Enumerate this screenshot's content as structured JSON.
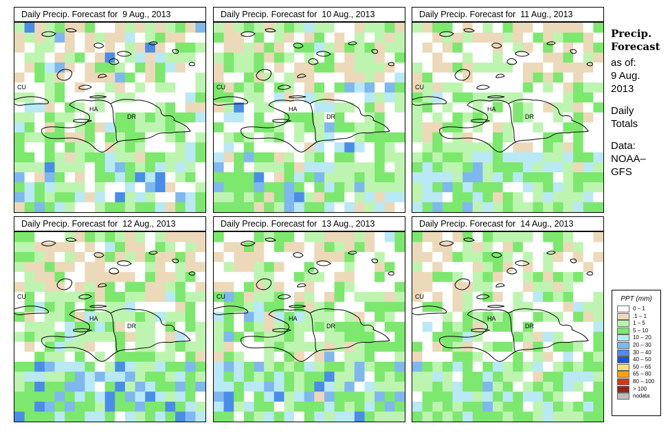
{
  "panels": [
    {
      "title": "Daily Precip. Forecast for  9 Aug., 2013",
      "labels": {
        "cu": "CU",
        "ha": "HA",
        "dr": "DR"
      }
    },
    {
      "title": "Daily Precip. Forecast for  10 Aug., 2013",
      "labels": {
        "cu": "CU",
        "ha": "HA",
        "dr": "DR"
      }
    },
    {
      "title": "Daily Precip. Forecast for  11 Aug., 2013",
      "labels": {
        "cu": "CU",
        "ha": "HA",
        "dr": "DR"
      }
    },
    {
      "title": "Daily Precip. Forecast for  12 Aug., 2013",
      "labels": {
        "cu": "CU",
        "ha": "HA",
        "dr": "DR"
      }
    },
    {
      "title": "Daily Precip. Forecast for  13 Aug., 2013",
      "labels": {
        "cu": "CU",
        "ha": "HA",
        "dr": "DR"
      }
    },
    {
      "title": "Daily Precip. Forecast for  14 Aug., 2013",
      "labels": {
        "cu": "CU",
        "ha": "HA",
        "dr": "DR"
      }
    }
  ],
  "side_info": {
    "title_line1": "Precip.",
    "title_line2": "Forecast",
    "asof_label": "as of:",
    "date_line1": "9 Aug.",
    "date_line2": "2013",
    "totals_line1": "Daily",
    "totals_line2": "Totals",
    "data_line1": "Data:",
    "data_line2": "NOAA–",
    "data_line3": "GFS"
  },
  "legend": {
    "title": "PPT (mm)",
    "items": [
      {
        "label": "0 – 1",
        "color": "#ffffff"
      },
      {
        "label": ".1 – 1",
        "color": "#ecd9b9"
      },
      {
        "label": "1 – 5",
        "color": "#bdf5b0"
      },
      {
        "label": "5 – 10",
        "color": "#7ce86d"
      },
      {
        "label": "10 – 20",
        "color": "#b8e9f5"
      },
      {
        "label": "20 – 30",
        "color": "#7fb8ee"
      },
      {
        "label": "30 – 40",
        "color": "#4a8de8"
      },
      {
        "label": "40 – 50",
        "color": "#1f55d8"
      },
      {
        "label": "50 – 65",
        "color": "#f5e07a"
      },
      {
        "label": "65 – 80",
        "color": "#f5a21a"
      },
      {
        "label": "80 – 100",
        "color": "#d8361c"
      },
      {
        "label": "> 100",
        "color": "#9c1f14"
      },
      {
        "label": "nodata",
        "color": "#bdbdbd"
      }
    ]
  }
}
